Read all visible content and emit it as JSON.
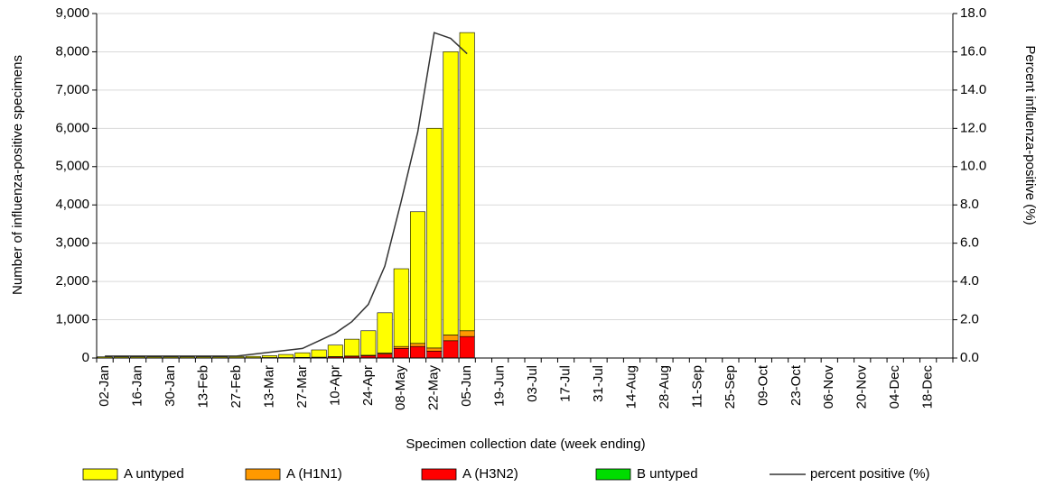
{
  "chart_data": {
    "type": "bar",
    "stacked": true,
    "categories": [
      "02-Jan",
      null,
      "16-Jan",
      null,
      "30-Jan",
      null,
      "13-Feb",
      null,
      "27-Feb",
      null,
      "13-Mar",
      null,
      "27-Mar",
      null,
      "10-Apr",
      null,
      "24-Apr",
      null,
      "08-May",
      null,
      "22-May",
      null,
      "05-Jun",
      null,
      "19-Jun",
      null,
      "03-Jul",
      null,
      "17-Jul",
      null,
      "31-Jul",
      null,
      "14-Aug",
      null,
      "28-Aug",
      null,
      "11-Sep",
      null,
      "25-Sep",
      null,
      "09-Oct",
      null,
      "23-Oct",
      null,
      "06-Nov",
      null,
      "20-Nov",
      null,
      "04-Dec",
      null,
      "18-Dec",
      null
    ],
    "x_label": "Specimen collection date (week ending)",
    "y_label": "Number of influenza-positive specimens",
    "y2_label": "Percent influenza-positive (%)",
    "ylim": [
      0,
      9000
    ],
    "yticks": [
      0,
      {
        "value": 1000,
        "label": "1,000"
      },
      {
        "value": 2000,
        "label": "2,000"
      },
      {
        "value": 3000,
        "label": "3,000"
      },
      {
        "value": 4000,
        "label": "4,000"
      },
      {
        "value": 5000,
        "label": "5,000"
      },
      {
        "value": 6000,
        "label": "6,000"
      },
      {
        "value": 7000,
        "label": "7,000"
      },
      {
        "value": 8000,
        "label": "8,000"
      },
      {
        "value": 9000,
        "label": "9,000"
      }
    ],
    "y2lim": [
      0,
      18
    ],
    "y2ticks": [
      {
        "value": 0,
        "label": "0.0"
      },
      {
        "value": 2,
        "label": "2.0"
      },
      {
        "value": 4,
        "label": "4.0"
      },
      {
        "value": 6,
        "label": "6.0"
      },
      {
        "value": 8,
        "label": "8.0"
      },
      {
        "value": 10,
        "label": "10.0"
      },
      {
        "value": 12,
        "label": "12.0"
      },
      {
        "value": 14,
        "label": "14.0"
      },
      {
        "value": 16,
        "label": "16.0"
      },
      {
        "value": 18,
        "label": "18.0"
      }
    ],
    "grid": true,
    "legend": "bottom",
    "series": [
      {
        "name": "A untyped",
        "color": "#ffff00",
        "type": "bar",
        "values": [
          25,
          25,
          25,
          25,
          25,
          25,
          25,
          25,
          30,
          35,
          50,
          80,
          120,
          190,
          300,
          440,
          640,
          1050,
          2030,
          3440,
          5740,
          7400,
          7790,
          null,
          null,
          null,
          null,
          null,
          null,
          null,
          null,
          null,
          null,
          null,
          null,
          null,
          null,
          null,
          null,
          null,
          null,
          null,
          null,
          null,
          null,
          null,
          null,
          null,
          null,
          null,
          null,
          null
        ]
      },
      {
        "name": "A (H1N1)",
        "color": "#ff9900",
        "type": "bar",
        "values": [
          0,
          0,
          0,
          0,
          0,
          0,
          0,
          0,
          0,
          0,
          0,
          0,
          0,
          0,
          5,
          10,
          10,
          30,
          50,
          80,
          80,
          150,
          150,
          null,
          null,
          null,
          null,
          null,
          null,
          null,
          null,
          null,
          null,
          null,
          null,
          null,
          null,
          null,
          null,
          null,
          null,
          null,
          null,
          null,
          null,
          null,
          null,
          null,
          null,
          null,
          null,
          null
        ]
      },
      {
        "name": "A (H3N2)",
        "color": "#ff0000",
        "type": "bar",
        "values": [
          5,
          5,
          5,
          5,
          5,
          5,
          5,
          5,
          5,
          5,
          10,
          10,
          15,
          20,
          30,
          40,
          60,
          100,
          250,
          300,
          180,
          450,
          560,
          null,
          null,
          null,
          null,
          null,
          null,
          null,
          null,
          null,
          null,
          null,
          null,
          null,
          null,
          null,
          null,
          null,
          null,
          null,
          null,
          null,
          null,
          null,
          null,
          null,
          null,
          null,
          null,
          null
        ]
      },
      {
        "name": "B untyped",
        "color": "#00dd00",
        "type": "bar",
        "values": [
          2,
          2,
          2,
          2,
          2,
          2,
          2,
          2,
          2,
          2,
          2,
          2,
          2,
          2,
          2,
          2,
          2,
          2,
          2,
          2,
          2,
          2,
          2,
          null,
          null,
          null,
          null,
          null,
          null,
          null,
          null,
          null,
          null,
          null,
          null,
          null,
          null,
          null,
          null,
          null,
          null,
          null,
          null,
          null,
          null,
          null,
          null,
          null,
          null,
          null,
          null,
          null
        ]
      },
      {
        "name": "percent positive (%)",
        "color": "#333333",
        "type": "line",
        "axis": "y2",
        "values": [
          0.1,
          0.1,
          0.1,
          0.1,
          0.1,
          0.1,
          0.1,
          0.1,
          0.1,
          0.2,
          0.3,
          0.4,
          0.5,
          0.9,
          1.3,
          1.9,
          2.8,
          4.8,
          8.2,
          11.8,
          17.0,
          16.7,
          15.9,
          null,
          null,
          null,
          null,
          null,
          null,
          null,
          null,
          null,
          null,
          null,
          null,
          null,
          null,
          null,
          null,
          null,
          null,
          null,
          null,
          null,
          null,
          null,
          null,
          null,
          null,
          null,
          null,
          null
        ]
      }
    ]
  }
}
